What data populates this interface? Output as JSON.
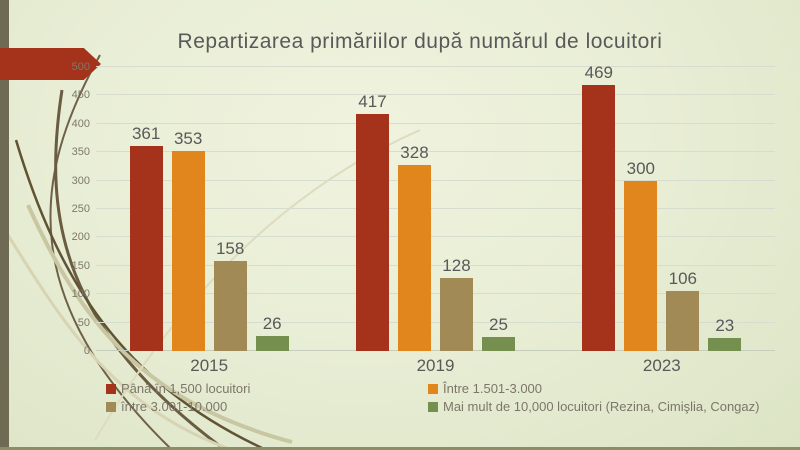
{
  "slide": {
    "accent_arrow_color": "#a5321b",
    "left_stripe_color": "#6f6a54",
    "bottom_line_color": "#8b8e60"
  },
  "chart_data": {
    "type": "bar",
    "title": "Repartizarea primăriilor după numărul de locuitori",
    "categories": [
      "2015",
      "2019",
      "2023"
    ],
    "series": [
      {
        "name": "Până în 1,500 locuitori",
        "color": "#a5321b",
        "values": [
          361,
          417,
          469
        ]
      },
      {
        "name": "Între 1.501-3.000",
        "color": "#e1861c",
        "values": [
          353,
          328,
          300
        ]
      },
      {
        "name": "între 3.001-10.000",
        "color": "#a18a55",
        "values": [
          158,
          128,
          106
        ]
      },
      {
        "name": "Mai mult de 10,000 locuitori (Rezina, Cimişlia, Congaz)",
        "color": "#75904e",
        "values": [
          26,
          25,
          23
        ]
      }
    ],
    "xlabel": "",
    "ylabel": "",
    "ylim": [
      0,
      500
    ],
    "yticks": [
      0,
      50,
      100,
      150,
      200,
      250,
      300,
      350,
      400,
      450,
      500
    ],
    "grid": true,
    "legend_position": "bottom"
  }
}
